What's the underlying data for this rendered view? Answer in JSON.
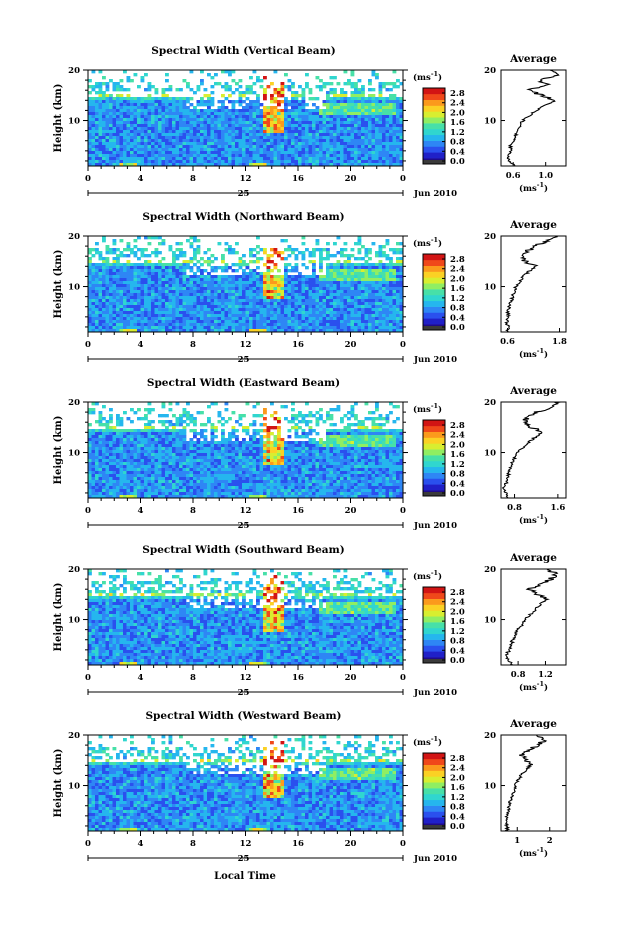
{
  "figure": {
    "xaxis_title": "Local Time",
    "date_label": "Jun 2010",
    "day_label": "25",
    "unit_label": "(ms",
    "unit_exp": "-1",
    "avg_unit_label": "(ms",
    "y_label": "Height (km)",
    "avg_title": "Average"
  },
  "colors": {
    "scale": [
      "#1e0a8a",
      "#2020c8",
      "#2a50ee",
      "#2e86f5",
      "#25b6ee",
      "#30d6cf",
      "#47e0a8",
      "#90ee62",
      "#d8ee30",
      "#fbd124",
      "#fb9a1c",
      "#f0481a",
      "#d21414"
    ],
    "bottom_band": "#3a3a3a"
  },
  "chart_data": [
    {
      "type": "heatmap",
      "title": "Spectral Width (Vertical Beam)",
      "x_ticks": [
        "0",
        "4",
        "8",
        "12",
        "16",
        "20",
        "0"
      ],
      "y_ticks": [
        "20",
        "10"
      ],
      "xlim": [
        0,
        24
      ],
      "ylim": [
        1,
        20
      ],
      "colorbar_ticks": [
        "2.8",
        "2.4",
        "2.0",
        "1.6",
        "1.2",
        "0.8",
        "0.4",
        "0.0"
      ],
      "colorbar_range": [
        0,
        3.0
      ],
      "profile": {
        "type": "line",
        "title": "Average",
        "x_ticks": [
          "0.6",
          "1.0"
        ],
        "xlim": [
          0.45,
          1.25
        ],
        "y_ticks": [
          "20",
          "10"
        ],
        "ylim": [
          1,
          20
        ],
        "height": [
          1,
          2,
          3,
          4,
          5,
          6,
          7,
          8,
          9,
          10,
          11,
          12,
          13,
          14,
          15,
          16,
          17,
          18,
          19,
          20
        ],
        "values": [
          0.62,
          0.55,
          0.53,
          0.58,
          0.56,
          0.6,
          0.63,
          0.66,
          0.68,
          0.72,
          0.8,
          0.88,
          1.0,
          1.12,
          0.95,
          0.78,
          1.02,
          0.92,
          1.15,
          1.05
        ]
      }
    },
    {
      "type": "heatmap",
      "title": "Spectral Width (Northward Beam)",
      "x_ticks": [
        "0",
        "4",
        "8",
        "12",
        "16",
        "20",
        "0"
      ],
      "y_ticks": [
        "20",
        "10"
      ],
      "xlim": [
        0,
        24
      ],
      "ylim": [
        1,
        20
      ],
      "colorbar_ticks": [
        "2.8",
        "2.4",
        "2.0",
        "1.6",
        "1.2",
        "0.8",
        "0.4",
        "0.0"
      ],
      "colorbar_range": [
        0,
        3.0
      ],
      "profile": {
        "type": "line",
        "title": "Average",
        "x_ticks": [
          "0.6",
          "1.8"
        ],
        "xlim": [
          0.45,
          1.95
        ],
        "y_ticks": [
          "20",
          "10"
        ],
        "ylim": [
          1,
          20
        ],
        "height": [
          1,
          2,
          3,
          4,
          5,
          6,
          7,
          8,
          9,
          10,
          11,
          12,
          13,
          14,
          15,
          16,
          17,
          18,
          19,
          20
        ],
        "values": [
          0.6,
          0.62,
          0.58,
          0.62,
          0.6,
          0.64,
          0.68,
          0.72,
          0.75,
          0.8,
          0.88,
          0.96,
          1.1,
          1.25,
          1.0,
          0.92,
          1.05,
          1.2,
          1.55,
          1.7
        ]
      }
    },
    {
      "type": "heatmap",
      "title": "Spectral Width (Eastward Beam)",
      "x_ticks": [
        "0",
        "4",
        "8",
        "12",
        "16",
        "20",
        "0"
      ],
      "y_ticks": [
        "20",
        "10"
      ],
      "xlim": [
        0,
        24
      ],
      "ylim": [
        1,
        20
      ],
      "colorbar_ticks": [
        "2.8",
        "2.4",
        "2.0",
        "1.6",
        "1.2",
        "0.8",
        "0.4",
        "0.0"
      ],
      "colorbar_range": [
        0,
        3.0
      ],
      "profile": {
        "type": "line",
        "title": "Average",
        "x_ticks": [
          "0.8",
          "1.6"
        ],
        "xlim": [
          0.55,
          1.75
        ],
        "y_ticks": [
          "20",
          "10"
        ],
        "ylim": [
          1,
          20
        ],
        "height": [
          1,
          2,
          3,
          4,
          5,
          6,
          7,
          8,
          9,
          10,
          11,
          12,
          13,
          14,
          15,
          16,
          17,
          18,
          19,
          20
        ],
        "values": [
          0.68,
          0.63,
          0.6,
          0.65,
          0.66,
          0.7,
          0.72,
          0.76,
          0.8,
          0.86,
          0.95,
          1.05,
          1.18,
          1.3,
          1.12,
          0.98,
          1.05,
          1.2,
          1.5,
          1.65
        ]
      }
    },
    {
      "type": "heatmap",
      "title": "Spectral Width (Southward Beam)",
      "x_ticks": [
        "0",
        "4",
        "8",
        "12",
        "16",
        "20",
        "0"
      ],
      "y_ticks": [
        "20",
        "10"
      ],
      "xlim": [
        0,
        24
      ],
      "ylim": [
        1,
        20
      ],
      "colorbar_ticks": [
        "2.8",
        "2.4",
        "2.0",
        "1.6",
        "1.2",
        "0.8",
        "0.4",
        "0.0"
      ],
      "colorbar_range": [
        0,
        3.0
      ],
      "profile": {
        "type": "line",
        "title": "Average",
        "x_ticks": [
          "0.8",
          "1.2"
        ],
        "xlim": [
          0.55,
          1.5
        ],
        "y_ticks": [
          "20",
          "10"
        ],
        "ylim": [
          1,
          20
        ],
        "height": [
          1,
          2,
          3,
          4,
          5,
          6,
          7,
          8,
          9,
          10,
          11,
          12,
          13,
          14,
          15,
          16,
          17,
          18,
          19,
          20
        ],
        "values": [
          0.72,
          0.66,
          0.62,
          0.68,
          0.7,
          0.72,
          0.76,
          0.8,
          0.86,
          0.9,
          0.98,
          1.05,
          1.12,
          1.22,
          1.08,
          0.95,
          1.12,
          1.28,
          1.35,
          1.25
        ]
      }
    },
    {
      "type": "heatmap",
      "title": "Spectral Width (Westward Beam)",
      "x_ticks": [
        "0",
        "4",
        "8",
        "12",
        "16",
        "20",
        "0"
      ],
      "y_ticks": [
        "20",
        "10"
      ],
      "xlim": [
        0,
        24
      ],
      "ylim": [
        1,
        20
      ],
      "colorbar_ticks": [
        "2.8",
        "2.4",
        "2.0",
        "1.6",
        "1.2",
        "0.8",
        "0.4",
        "0.0"
      ],
      "colorbar_range": [
        0,
        3.0
      ],
      "profile": {
        "type": "line",
        "title": "Average",
        "x_ticks": [
          "1",
          "2"
        ],
        "xlim": [
          0.5,
          2.5
        ],
        "y_ticks": [
          "20",
          "10"
        ],
        "ylim": [
          1,
          20
        ],
        "height": [
          1,
          2,
          3,
          4,
          5,
          6,
          7,
          8,
          9,
          10,
          11,
          12,
          13,
          14,
          15,
          16,
          17,
          18,
          19,
          20
        ],
        "values": [
          0.72,
          0.68,
          0.65,
          0.7,
          0.72,
          0.75,
          0.8,
          0.85,
          0.9,
          0.95,
          1.02,
          1.12,
          1.25,
          1.4,
          1.3,
          1.15,
          1.35,
          1.65,
          1.85,
          1.6
        ]
      }
    }
  ]
}
